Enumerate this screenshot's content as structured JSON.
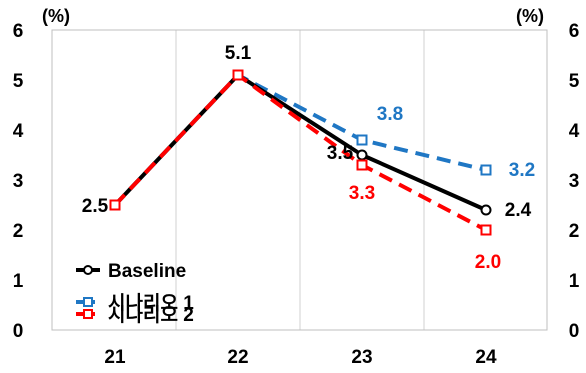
{
  "chart_data": {
    "type": "line",
    "y_unit_left": "(%)",
    "y_unit_right": "(%)",
    "categories": [
      "21",
      "22",
      "23",
      "24"
    ],
    "ylim": [
      0,
      6
    ],
    "yticks": [
      "0",
      "1",
      "2",
      "3",
      "4",
      "5",
      "6"
    ],
    "grid": "vertical gridlines",
    "legend": "bottom-left",
    "series": [
      {
        "name": "Baseline",
        "values": [
          2.5,
          5.1,
          3.5,
          2.4
        ],
        "labels": [
          "2.5",
          "5.1",
          "3.5",
          "2.4"
        ],
        "color": "#000000",
        "dash": "solid",
        "marker": "circle"
      },
      {
        "name": "시나리오 1",
        "values": [
          2.5,
          5.1,
          3.8,
          3.2
        ],
        "labels": [
          "",
          "",
          "3.8",
          "3.2"
        ],
        "color": "#1f77c4",
        "dash": "dashed",
        "marker": "square"
      },
      {
        "name": "시나리오 2",
        "values": [
          2.5,
          5.1,
          3.3,
          2.0
        ],
        "labels": [
          "",
          "",
          "3.3",
          "2.0"
        ],
        "color": "#ff0000",
        "dash": "dashed",
        "marker": "square"
      }
    ]
  }
}
